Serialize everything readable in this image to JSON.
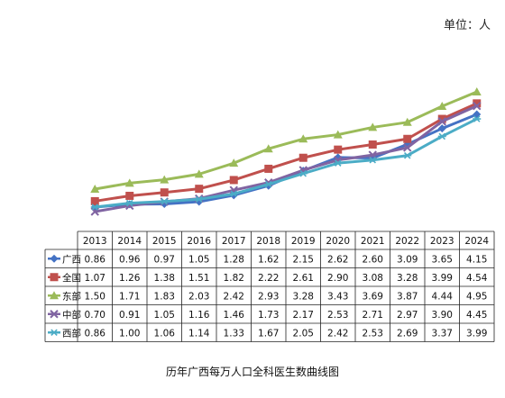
{
  "unit_label": "单位：人",
  "chart_data": {
    "type": "line",
    "title": "历年广西每万人口全科医生数曲线图",
    "categories": [
      "2013",
      "2014",
      "2015",
      "2016",
      "2017",
      "2018",
      "2019",
      "2020",
      "2021",
      "2022",
      "2023",
      "2024"
    ],
    "series": [
      {
        "name": "广西",
        "color": "#4472C4",
        "marker": "diamond",
        "values": [
          0.86,
          0.96,
          0.97,
          1.05,
          1.28,
          1.62,
          2.15,
          2.62,
          2.6,
          3.09,
          3.65,
          4.15
        ]
      },
      {
        "name": "全国",
        "color": "#C0504D",
        "marker": "square",
        "values": [
          1.07,
          1.26,
          1.38,
          1.51,
          1.82,
          2.22,
          2.61,
          2.9,
          3.08,
          3.28,
          3.99,
          4.54
        ]
      },
      {
        "name": "东部",
        "color": "#9BBB59",
        "marker": "triangle",
        "values": [
          1.5,
          1.71,
          1.83,
          2.03,
          2.42,
          2.93,
          3.28,
          3.43,
          3.69,
          3.87,
          4.44,
          4.95
        ]
      },
      {
        "name": "中部",
        "color": "#8064A2",
        "marker": "x",
        "values": [
          0.7,
          0.91,
          1.05,
          1.16,
          1.46,
          1.73,
          2.17,
          2.53,
          2.71,
          2.97,
          3.9,
          4.45
        ]
      },
      {
        "name": "西部",
        "color": "#4BACC6",
        "marker": "star",
        "values": [
          0.86,
          1.0,
          1.06,
          1.14,
          1.33,
          1.67,
          2.05,
          2.42,
          2.53,
          2.69,
          3.37,
          3.99
        ]
      }
    ],
    "table_values": [
      [
        "0.86",
        "0.96",
        "0.97",
        "1.05",
        "1.28",
        "1.62",
        "2.15",
        "2.62",
        "2.60",
        "3.09",
        "3.65",
        "4.15"
      ],
      [
        "1.07",
        "1.26",
        "1.38",
        "1.51",
        "1.82",
        "2.22",
        "2.61",
        "2.90",
        "3.08",
        "3.28",
        "3.99",
        "4.54"
      ],
      [
        "1.50",
        "1.71",
        "1.83",
        "2.03",
        "2.42",
        "2.93",
        "3.28",
        "3.43",
        "3.69",
        "3.87",
        "4.44",
        "4.95"
      ],
      [
        "0.70",
        "0.91",
        "1.05",
        "1.16",
        "1.46",
        "1.73",
        "2.17",
        "2.53",
        "2.71",
        "2.97",
        "3.90",
        "4.45"
      ],
      [
        "0.86",
        "1.00",
        "1.06",
        "1.14",
        "1.33",
        "1.67",
        "2.05",
        "2.42",
        "2.53",
        "2.69",
        "3.37",
        "3.99"
      ]
    ],
    "grid": false,
    "legend": "data-table"
  }
}
